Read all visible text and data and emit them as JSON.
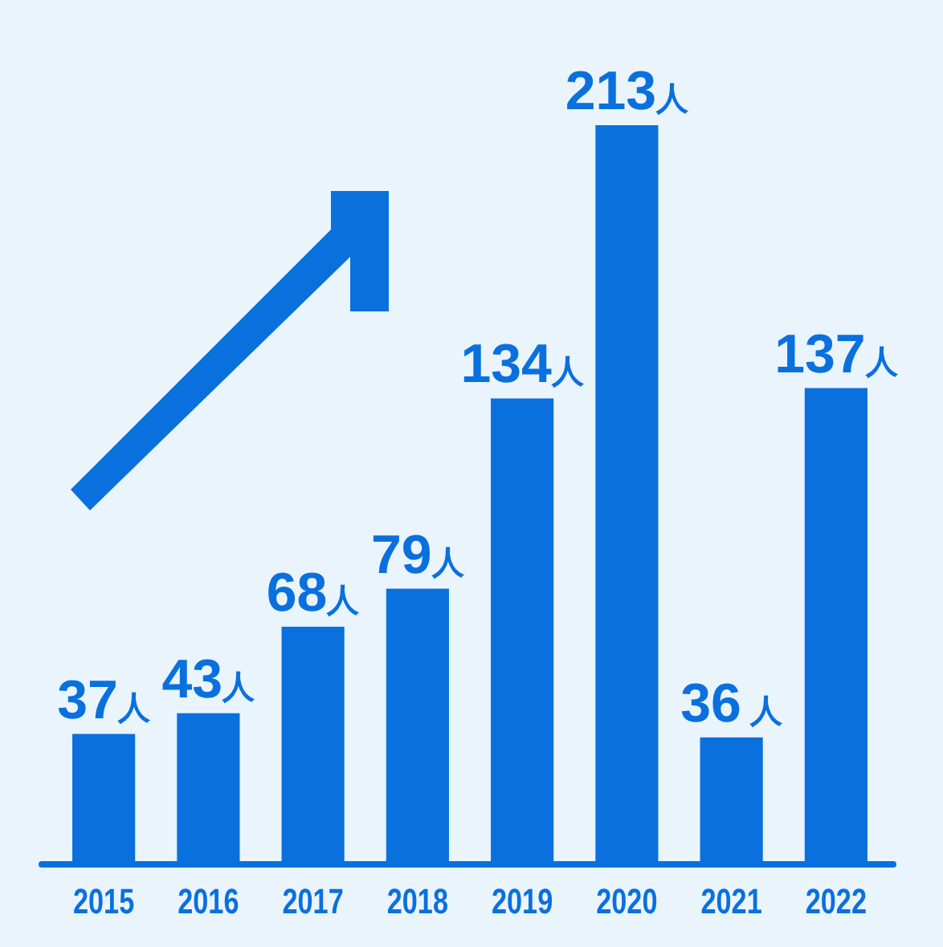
{
  "chart_data": {
    "type": "bar",
    "categories": [
      "2015",
      "2016",
      "2017",
      "2018",
      "2019",
      "2020",
      "2021",
      "2022"
    ],
    "values": [
      37,
      43,
      68,
      79,
      134,
      213,
      36,
      137
    ],
    "value_labels": [
      "37人",
      "43人",
      "68人",
      "79人",
      "134人",
      "213人",
      "36 人",
      "137人"
    ],
    "color": "#0a70de"
  }
}
